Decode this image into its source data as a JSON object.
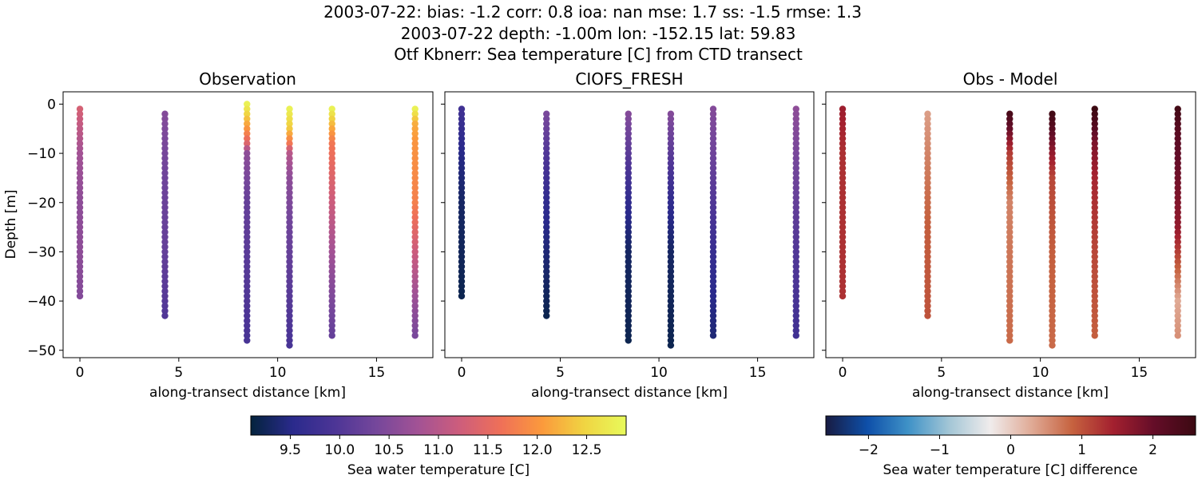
{
  "figure": {
    "title_lines": [
      "2003-07-22: bias: -1.2  corr: 0.8  ioa: nan  mse: 1.7  ss: -1.5  rmse: 1.3",
      "2003-07-22 depth: -1.00m lon: -152.15 lat: 59.83",
      "Otf Kbnerr: Sea temperature [C] from CTD transect"
    ]
  },
  "chart_data": [
    {
      "type": "scatter",
      "title": "Observation",
      "xlabel": "along-transect distance [km]",
      "ylabel": "Depth [m]",
      "xlim": [
        -0.85,
        17.85
      ],
      "ylim": [
        -51.5,
        2.5
      ],
      "xticks": [
        0,
        5,
        10,
        15
      ],
      "yticks": [
        0,
        -10,
        -20,
        -30,
        -40,
        -50
      ],
      "colormap": "thermal",
      "clim": [
        9.1,
        12.9
      ],
      "profiles": [
        {
          "x": 0.0,
          "top": -1,
          "bottom": -39,
          "stops": [
            [
              -1,
              11.3
            ],
            [
              -10,
              10.8
            ],
            [
              -20,
              10.6
            ],
            [
              -30,
              10.6
            ],
            [
              -39,
              10.5
            ]
          ]
        },
        {
          "x": 4.3,
          "top": -2,
          "bottom": -43,
          "stops": [
            [
              -2,
              10.5
            ],
            [
              -15,
              10.3
            ],
            [
              -30,
              10.2
            ],
            [
              -43,
              10.0
            ]
          ]
        },
        {
          "x": 8.45,
          "top": 0,
          "bottom": -48,
          "stops": [
            [
              0,
              12.8
            ],
            [
              -2,
              12.5
            ],
            [
              -5,
              12.0
            ],
            [
              -8,
              11.4
            ],
            [
              -10,
              10.6
            ],
            [
              -20,
              10.2
            ],
            [
              -48,
              9.9
            ]
          ]
        },
        {
          "x": 10.6,
          "top": -1,
          "bottom": -49,
          "stops": [
            [
              -1,
              12.8
            ],
            [
              -5,
              12.4
            ],
            [
              -8,
              11.7
            ],
            [
              -10,
              11.0
            ],
            [
              -15,
              10.6
            ],
            [
              -25,
              10.3
            ],
            [
              -49,
              9.9
            ]
          ]
        },
        {
          "x": 12.75,
          "top": -1,
          "bottom": -47,
          "stops": [
            [
              -1,
              12.8
            ],
            [
              -4,
              12.3
            ],
            [
              -8,
              11.7
            ],
            [
              -15,
              11.4
            ],
            [
              -25,
              11.0
            ],
            [
              -35,
              10.6
            ],
            [
              -47,
              10.2
            ]
          ]
        },
        {
          "x": 16.95,
          "top": -1,
          "bottom": -47,
          "stops": [
            [
              -1,
              12.8
            ],
            [
              -4,
              12.2
            ],
            [
              -8,
              12.0
            ],
            [
              -20,
              11.8
            ],
            [
              -30,
              11.2
            ],
            [
              -40,
              10.7
            ],
            [
              -47,
              10.4
            ]
          ]
        }
      ]
    },
    {
      "type": "scatter",
      "title": "CIOFS_FRESH",
      "xlabel": "along-transect distance [km]",
      "ylabel": "",
      "xlim": [
        -0.85,
        17.85
      ],
      "ylim": [
        -51.5,
        2.5
      ],
      "xticks": [
        0,
        5,
        10,
        15
      ],
      "yticks": [
        0,
        -10,
        -20,
        -30,
        -40,
        -50
      ],
      "colormap": "thermal",
      "clim": [
        9.1,
        12.9
      ],
      "profiles": [
        {
          "x": 0.0,
          "top": -1,
          "bottom": -39,
          "stops": [
            [
              -1,
              9.8
            ],
            [
              -10,
              9.5
            ],
            [
              -20,
              9.3
            ],
            [
              -39,
              9.2
            ]
          ]
        },
        {
          "x": 4.3,
          "top": -2,
          "bottom": -43,
          "stops": [
            [
              -2,
              10.4
            ],
            [
              -10,
              10.0
            ],
            [
              -20,
              9.6
            ],
            [
              -30,
              9.4
            ],
            [
              -43,
              9.2
            ]
          ]
        },
        {
          "x": 8.45,
          "top": -2,
          "bottom": -48,
          "stops": [
            [
              -2,
              10.5
            ],
            [
              -10,
              10.1
            ],
            [
              -20,
              9.6
            ],
            [
              -30,
              9.3
            ],
            [
              -48,
              9.2
            ]
          ]
        },
        {
          "x": 10.6,
          "top": -2,
          "bottom": -49,
          "stops": [
            [
              -2,
              10.5
            ],
            [
              -10,
              10.1
            ],
            [
              -20,
              9.6
            ],
            [
              -30,
              9.3
            ],
            [
              -49,
              9.2
            ]
          ]
        },
        {
          "x": 12.75,
          "top": -1,
          "bottom": -47,
          "stops": [
            [
              -1,
              10.5
            ],
            [
              -10,
              10.3
            ],
            [
              -20,
              10.0
            ],
            [
              -30,
              9.7
            ],
            [
              -40,
              9.5
            ],
            [
              -47,
              9.4
            ]
          ]
        },
        {
          "x": 16.95,
          "top": -1,
          "bottom": -47,
          "stops": [
            [
              -1,
              10.6
            ],
            [
              -10,
              10.4
            ],
            [
              -20,
              10.2
            ],
            [
              -30,
              10.0
            ],
            [
              -40,
              9.9
            ],
            [
              -47,
              9.8
            ]
          ]
        }
      ]
    },
    {
      "type": "scatter",
      "title": "Obs - Model",
      "xlabel": "along-transect distance [km]",
      "ylabel": "",
      "xlim": [
        -0.85,
        17.85
      ],
      "ylim": [
        -51.5,
        2.5
      ],
      "xticks": [
        0,
        5,
        10,
        15
      ],
      "yticks": [
        0,
        -10,
        -20,
        -30,
        -40,
        -50
      ],
      "colormap": "balance",
      "clim": [
        -2.6,
        2.6
      ],
      "profiles": [
        {
          "x": 0.0,
          "top": -1,
          "bottom": -39,
          "stops": [
            [
              -1,
              1.5
            ],
            [
              -10,
              1.3
            ],
            [
              -20,
              1.3
            ],
            [
              -39,
              1.3
            ]
          ]
        },
        {
          "x": 4.3,
          "top": -2,
          "bottom": -43,
          "stops": [
            [
              -2,
              0.4
            ],
            [
              -10,
              0.6
            ],
            [
              -25,
              0.9
            ],
            [
              -43,
              1.0
            ]
          ]
        },
        {
          "x": 8.45,
          "top": -2,
          "bottom": -48,
          "stops": [
            [
              -2,
              2.4
            ],
            [
              -5,
              2.0
            ],
            [
              -10,
              1.2
            ],
            [
              -20,
              0.6
            ],
            [
              -30,
              0.7
            ],
            [
              -48,
              0.8
            ]
          ]
        },
        {
          "x": 10.6,
          "top": -2,
          "bottom": -49,
          "stops": [
            [
              -2,
              2.5
            ],
            [
              -5,
              2.2
            ],
            [
              -10,
              1.6
            ],
            [
              -15,
              1.1
            ],
            [
              -30,
              0.9
            ],
            [
              -49,
              0.8
            ]
          ]
        },
        {
          "x": 12.75,
          "top": -1,
          "bottom": -47,
          "stops": [
            [
              -1,
              2.6
            ],
            [
              -4,
              2.3
            ],
            [
              -8,
              1.8
            ],
            [
              -15,
              1.4
            ],
            [
              -30,
              1.1
            ],
            [
              -47,
              0.9
            ]
          ]
        },
        {
          "x": 16.95,
          "top": -1,
          "bottom": -47,
          "stops": [
            [
              -1,
              2.5
            ],
            [
              -5,
              2.2
            ],
            [
              -15,
              1.9
            ],
            [
              -25,
              1.6
            ],
            [
              -32,
              1.0
            ],
            [
              -40,
              0.3
            ],
            [
              -47,
              0.5
            ]
          ]
        }
      ]
    }
  ],
  "colorbars": [
    {
      "label": "Sea water temperature [C]",
      "colormap": "thermal",
      "clim": [
        9.1,
        12.9
      ],
      "ticks": [
        9.5,
        10.0,
        10.5,
        11.0,
        11.5,
        12.0,
        12.5
      ],
      "tick_labels": [
        "9.5",
        "10.0",
        "10.5",
        "11.0",
        "11.5",
        "12.0",
        "12.5"
      ]
    },
    {
      "label": "Sea water temperature [C] difference",
      "colormap": "balance",
      "clim": [
        -2.6,
        2.6
      ],
      "ticks": [
        -2,
        -1,
        0,
        1,
        2
      ],
      "tick_labels": [
        "−2",
        "−1",
        "0",
        "1",
        "2"
      ]
    }
  ],
  "colormaps": {
    "thermal": [
      "#04233e",
      "#2a2a8c",
      "#4c3596",
      "#75479b",
      "#a25295",
      "#cd5d7c",
      "#ef7058",
      "#fb9a3c",
      "#f0d442",
      "#e8fa5b"
    ],
    "balance": [
      "#181c43",
      "#0e4fa9",
      "#3f92c7",
      "#a3c6d6",
      "#f0ecec",
      "#e0ab97",
      "#c6623f",
      "#a3202f",
      "#640d28",
      "#3c0912"
    ]
  }
}
